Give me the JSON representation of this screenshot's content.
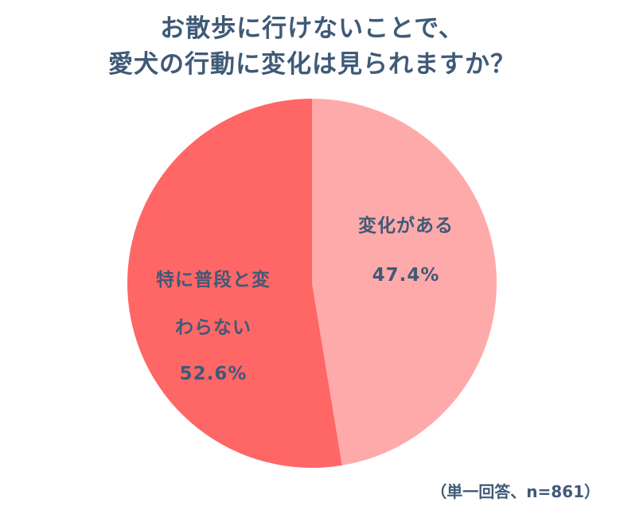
{
  "chart_data": {
    "type": "pie",
    "title_line1": "お散歩に行けないことで、",
    "title_line2": "愛犬の行動に変化は見られますか？",
    "slices": [
      {
        "label": "変化がある",
        "value": 47.4,
        "value_label": "47.4%",
        "color": "#ffaaaa"
      },
      {
        "label_line1": "特に普段と変",
        "label_line2": "わらない",
        "value": 52.6,
        "value_label": "52.6%",
        "color": "#ff6666"
      }
    ],
    "note": "（単一回答、n=861）"
  }
}
